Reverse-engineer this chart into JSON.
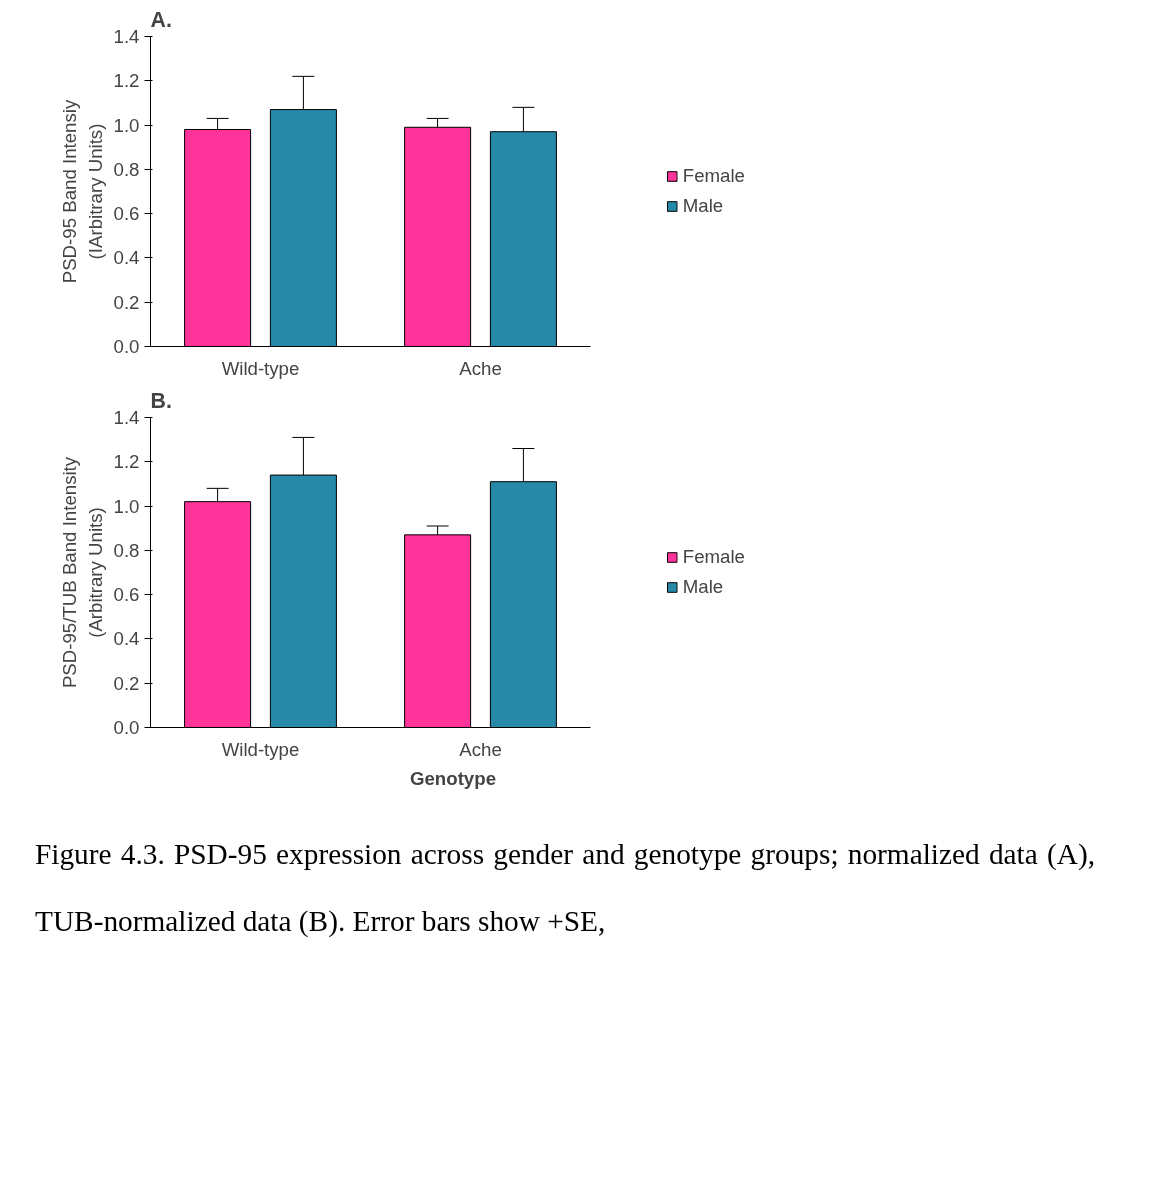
{
  "chart_data": [
    {
      "type": "bar",
      "title": "A.",
      "ylabel": "PSD-95 Band Intensiy\n(IArbitrary Units)",
      "categories": [
        "Wild-type",
        "Ache"
      ],
      "series": [
        {
          "name": "Female",
          "color": "#ff3399",
          "values": [
            0.98,
            0.99
          ],
          "errors": [
            [
              0.98,
              1.03
            ],
            [
              0.99,
              1.03
            ]
          ]
        },
        {
          "name": "Male",
          "color": "#2789a8",
          "values": [
            1.07,
            0.97
          ],
          "errors": [
            [
              1.07,
              1.22
            ],
            [
              0.97,
              1.08
            ]
          ]
        }
      ],
      "ylim": [
        0,
        1.4
      ],
      "yticks": [
        {
          "value": 0,
          "label": "0.0"
        },
        {
          "value": 0.2,
          "label": "0.2"
        },
        {
          "value": 0.4,
          "label": "0.4"
        },
        {
          "value": 0.6,
          "label": "0.6"
        },
        {
          "value": 0.8,
          "label": "0.8"
        },
        {
          "value": 1.0,
          "label": "1.0"
        },
        {
          "value": 1.2,
          "label": "1.2"
        },
        {
          "value": 1.4,
          "label": "1.4"
        }
      ],
      "grid": false,
      "legend": "right"
    },
    {
      "type": "bar",
      "title": "B.",
      "xlabel": "Genotype",
      "ylabel": "PSD-95/TUB Band Intensity\n(Arbitrary Units)",
      "categories": [
        "Wild-type",
        "Ache"
      ],
      "series": [
        {
          "name": "Female",
          "color": "#ff3399",
          "values": [
            1.02,
            0.87
          ],
          "errors": [
            [
              1.02,
              1.08
            ],
            [
              0.87,
              0.91
            ]
          ]
        },
        {
          "name": "Male",
          "color": "#2789a8",
          "values": [
            1.14,
            1.11
          ],
          "errors": [
            [
              1.14,
              1.31
            ],
            [
              1.11,
              1.26
            ]
          ]
        }
      ],
      "ylim": [
        0,
        1.4
      ],
      "yticks": [
        {
          "value": 0,
          "label": "0.0"
        },
        {
          "value": 0.2,
          "label": "0.2"
        },
        {
          "value": 0.4,
          "label": "0.4"
        },
        {
          "value": 0.6,
          "label": "0.6"
        },
        {
          "value": 0.8,
          "label": "0.8"
        },
        {
          "value": 1.0,
          "label": "1.0"
        },
        {
          "value": 1.2,
          "label": "1.2"
        },
        {
          "value": 1.4,
          "label": "1.4"
        }
      ],
      "grid": false,
      "legend": "right",
      "annotations": [
        "Figure 4.3. PSD-95 expression across gender and genotype groups; normalized data (A), TUB-normalized data (B). Error bars show +SE,"
      ]
    }
  ]
}
